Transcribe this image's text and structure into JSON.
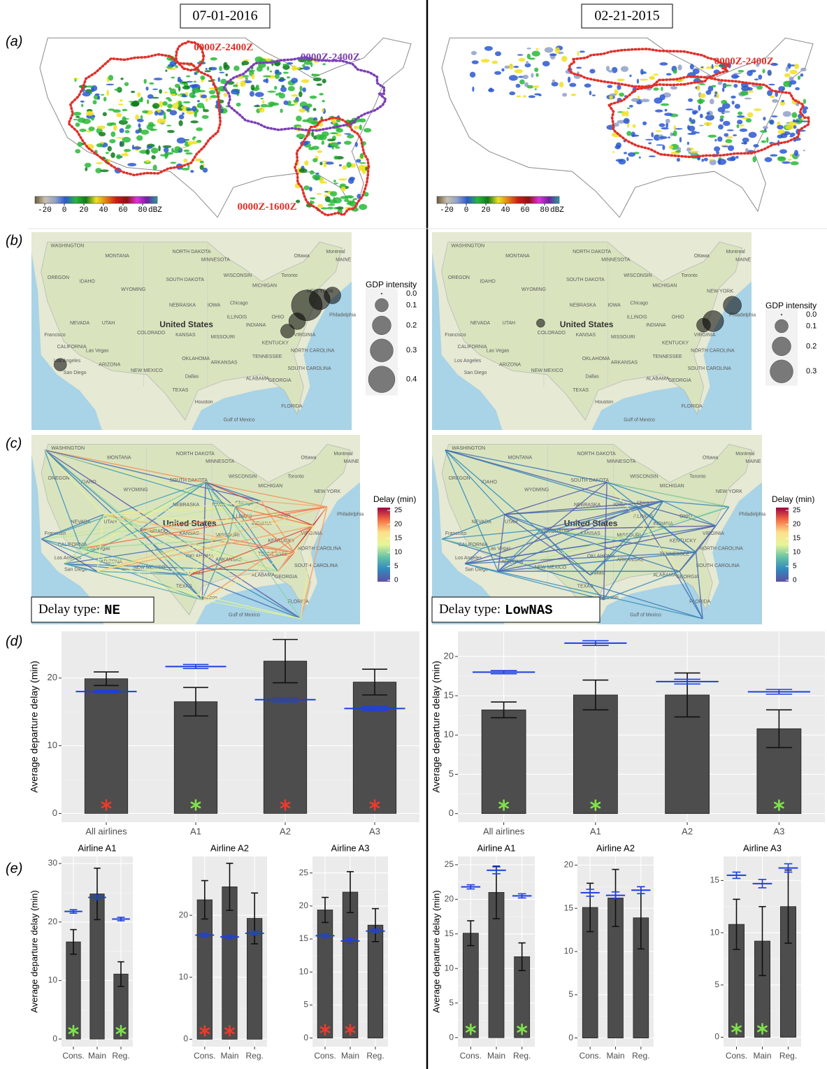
{
  "panel_labels": [
    "(a)",
    "(b)",
    "(c)",
    "(d)",
    "(e)"
  ],
  "columns": [
    {
      "date": "07-01-2016",
      "radar_times": [
        "0000Z-2400Z",
        "0000Z-2400Z",
        "0000Z-1600Z"
      ],
      "delay_type_prefix": "Delay type:",
      "delay_type": "NE",
      "gdp_sizes": [
        {
          "value": 0,
          "label": "0.0"
        },
        0.1,
        0.2,
        0.3,
        0.4
      ]
    },
    {
      "date": "02-21-2015",
      "radar_times": [
        "0000Z-2400Z"
      ],
      "delay_type_prefix": "Delay type:",
      "delay_type": "LowNAS",
      "gdp_sizes": [
        {
          "value": 0,
          "label": "0.0"
        },
        0.1,
        0.2,
        0.3
      ]
    }
  ],
  "radar_colorbar": {
    "ticks": [
      -20,
      0,
      20,
      40,
      60,
      80
    ],
    "unit": "dBZ",
    "lim": [
      -30,
      95
    ],
    "colors": [
      "#6b5a3a",
      "#c8c2b0",
      "#8fa0c8",
      "#2a58d0",
      "#29b838",
      "#0e7a1c",
      "#f0e020",
      "#e08010",
      "#d01818",
      "#901010",
      "#e030e0",
      "#7020a0",
      "#20a0a0"
    ]
  },
  "gdp_legend_title": "GDP intensity",
  "delay_legend": {
    "title": "Delay (min)",
    "ticks": [
      0,
      5,
      10,
      15,
      20,
      25
    ],
    "lim": [
      -0.5,
      26
    ],
    "colors": [
      "#5e4fa2",
      "#3288bd",
      "#66c2a5",
      "#e6f598",
      "#fee08b",
      "#f46d43",
      "#9e0142"
    ]
  },
  "map_labels": [
    "WASHINGTON",
    "MONTANA",
    "NORTH DAKOTA",
    "SOUTH DAKOTA",
    "MINNESOTA",
    "WISCONSIN",
    "MICHIGAN",
    "OREGON",
    "IDAHO",
    "WYOMING",
    "NEBRASKA",
    "IOWA",
    "ILLINOIS",
    "INDIANA",
    "OHIO",
    "NEVADA",
    "UTAH",
    "COLORADO",
    "KANSAS",
    "MISSOURI",
    "KENTUCKY",
    "VIRGINIA",
    "CALIFORNIA",
    "ARIZONA",
    "NEW MEXICO",
    "OKLAHOMA",
    "ARKANSAS",
    "TENNESSEE",
    "NORTH CAROLINA",
    "SOUTH CAROLINA",
    "GEORGIA",
    "ALABAMA",
    "TEXAS",
    "FLORIDA",
    "NEW YORK",
    "MAINE",
    "United States",
    "Ottawa",
    "Montreal",
    "Toronto",
    "Chicago",
    "Francisco",
    "Las Vegas",
    "Los Angeles",
    "San Diego",
    "Dallas",
    "Houston",
    "Philadelphia",
    "Gulf of Mexico"
  ],
  "chart_data": [
    {
      "type": "bar",
      "ylabel": "Average departure delay (min)",
      "categories": [
        "All airlines",
        "A1",
        "A2",
        "A3"
      ],
      "values": [
        19.9,
        16.5,
        22.5,
        19.4
      ],
      "errors": [
        1.0,
        2.1,
        3.2,
        1.9
      ],
      "reference": [
        18.0,
        21.7,
        16.8,
        15.5
      ],
      "reference_errors": [
        0.2,
        0.3,
        0.3,
        0.3
      ],
      "markers": [
        "#ee3a2c",
        "#7fe34a",
        "#ee3a2c",
        "#ee3a2c"
      ],
      "color": "#4d4d4d",
      "reference_color": "#1c3fe0",
      "ylim": [
        -1.3,
        26.9
      ],
      "yticks": [
        0,
        10,
        20
      ]
    },
    {
      "type": "bar",
      "ylabel": "Average departure delay (min)",
      "categories": [
        "All airlines",
        "A1",
        "A2",
        "A3"
      ],
      "values": [
        13.2,
        15.1,
        15.1,
        10.8
      ],
      "errors": [
        1.0,
        1.9,
        2.8,
        2.4
      ],
      "reference": [
        18.0,
        21.7,
        16.8,
        15.5
      ],
      "reference_errors": [
        0.2,
        0.3,
        0.3,
        0.3
      ],
      "markers": [
        "#7fe34a",
        "#7fe34a",
        null,
        "#7fe34a"
      ],
      "color": "#4d4d4d",
      "reference_color": "#1c3fe0",
      "ylim": [
        -1.1,
        23.2
      ],
      "yticks": [
        0,
        5,
        10,
        15,
        20
      ]
    },
    {
      "type": "bar",
      "title": "Airline A1",
      "ylabel": "Average departure delay (min)",
      "categories": [
        "Cons.",
        "Main",
        "Reg."
      ],
      "values": [
        16.6,
        24.8,
        11.1
      ],
      "errors": [
        2.1,
        4.4,
        2.1
      ],
      "reference": [
        21.8,
        24.2,
        20.5
      ],
      "reference_errors": [
        0.3,
        0.4,
        0.3
      ],
      "markers": [
        "#7fe34a",
        null,
        "#7fe34a"
      ],
      "color": "#4d4d4d",
      "reference_color": "#1c3fe0",
      "ylim": [
        -1.3,
        31.2
      ],
      "yticks": [
        0,
        10,
        20,
        30
      ]
    },
    {
      "type": "bar",
      "title": "Airline A2",
      "categories": [
        "Cons.",
        "Main",
        "Reg."
      ],
      "values": [
        22.5,
        24.6,
        19.5
      ],
      "errors": [
        3.1,
        3.8,
        4.1
      ],
      "reference": [
        16.8,
        16.5,
        17.1
      ],
      "reference_errors": [
        0.3,
        0.3,
        0.3
      ],
      "markers": [
        "#ee3a2c",
        "#ee3a2c",
        null
      ],
      "color": "#4d4d4d",
      "reference_color": "#1c3fe0",
      "ylim": [
        -1.2,
        29.5
      ],
      "yticks": [
        0,
        10,
        20
      ]
    },
    {
      "type": "bar",
      "title": "Airline A3",
      "categories": [
        "Cons.",
        "Main",
        "Reg."
      ],
      "values": [
        19.4,
        22.1,
        17.1
      ],
      "errors": [
        1.9,
        3.1,
        2.5
      ],
      "reference": [
        15.5,
        14.7,
        16.2
      ],
      "reference_errors": [
        0.3,
        0.4,
        0.3
      ],
      "markers": [
        "#ee3a2c",
        "#ee3a2c",
        null
      ],
      "color": "#4d4d4d",
      "reference_color": "#1c3fe0",
      "ylim": [
        -1.3,
        27.5
      ],
      "yticks": [
        0,
        5,
        10,
        15,
        20,
        25
      ]
    },
    {
      "type": "bar",
      "title": "Airline A1",
      "ylabel": "Average departure delay (min)",
      "categories": [
        "Cons.",
        "Main",
        "Reg."
      ],
      "values": [
        15.1,
        21.0,
        11.7
      ],
      "errors": [
        1.8,
        3.8,
        2.0
      ],
      "reference": [
        21.8,
        24.2,
        20.5
      ],
      "reference_errors": [
        0.3,
        0.5,
        0.3
      ],
      "markers": [
        "#7fe34a",
        null,
        "#7fe34a"
      ],
      "color": "#4d4d4d",
      "reference_color": "#1c3fe0",
      "ylim": [
        -1.3,
        26.2
      ],
      "yticks": [
        0,
        5,
        10,
        15,
        20,
        25
      ]
    },
    {
      "type": "bar",
      "title": "Airline A2",
      "categories": [
        "Cons.",
        "Main",
        "Reg."
      ],
      "values": [
        15.1,
        16.2,
        13.9
      ],
      "errors": [
        2.8,
        3.3,
        3.6
      ],
      "reference": [
        16.8,
        16.5,
        17.1
      ],
      "reference_errors": [
        0.4,
        0.4,
        0.4
      ],
      "markers": [
        null,
        null,
        null
      ],
      "color": "#4d4d4d",
      "reference_color": "#1c3fe0",
      "ylim": [
        -1.0,
        21.0
      ],
      "yticks": [
        0,
        5,
        10,
        15,
        20
      ]
    },
    {
      "type": "bar",
      "title": "Airline A3",
      "categories": [
        "Cons.",
        "Main",
        "Reg."
      ],
      "values": [
        10.8,
        9.2,
        12.5
      ],
      "errors": [
        2.4,
        3.3,
        3.5
      ],
      "reference": [
        15.5,
        14.7,
        16.2
      ],
      "reference_errors": [
        0.3,
        0.4,
        0.4
      ],
      "markers": [
        "#7fe34a",
        "#7fe34a",
        null
      ],
      "color": "#4d4d4d",
      "reference_color": "#1c3fe0",
      "ylim": [
        -0.9,
        17.3
      ],
      "yticks": [
        0,
        5,
        10,
        15
      ]
    }
  ]
}
